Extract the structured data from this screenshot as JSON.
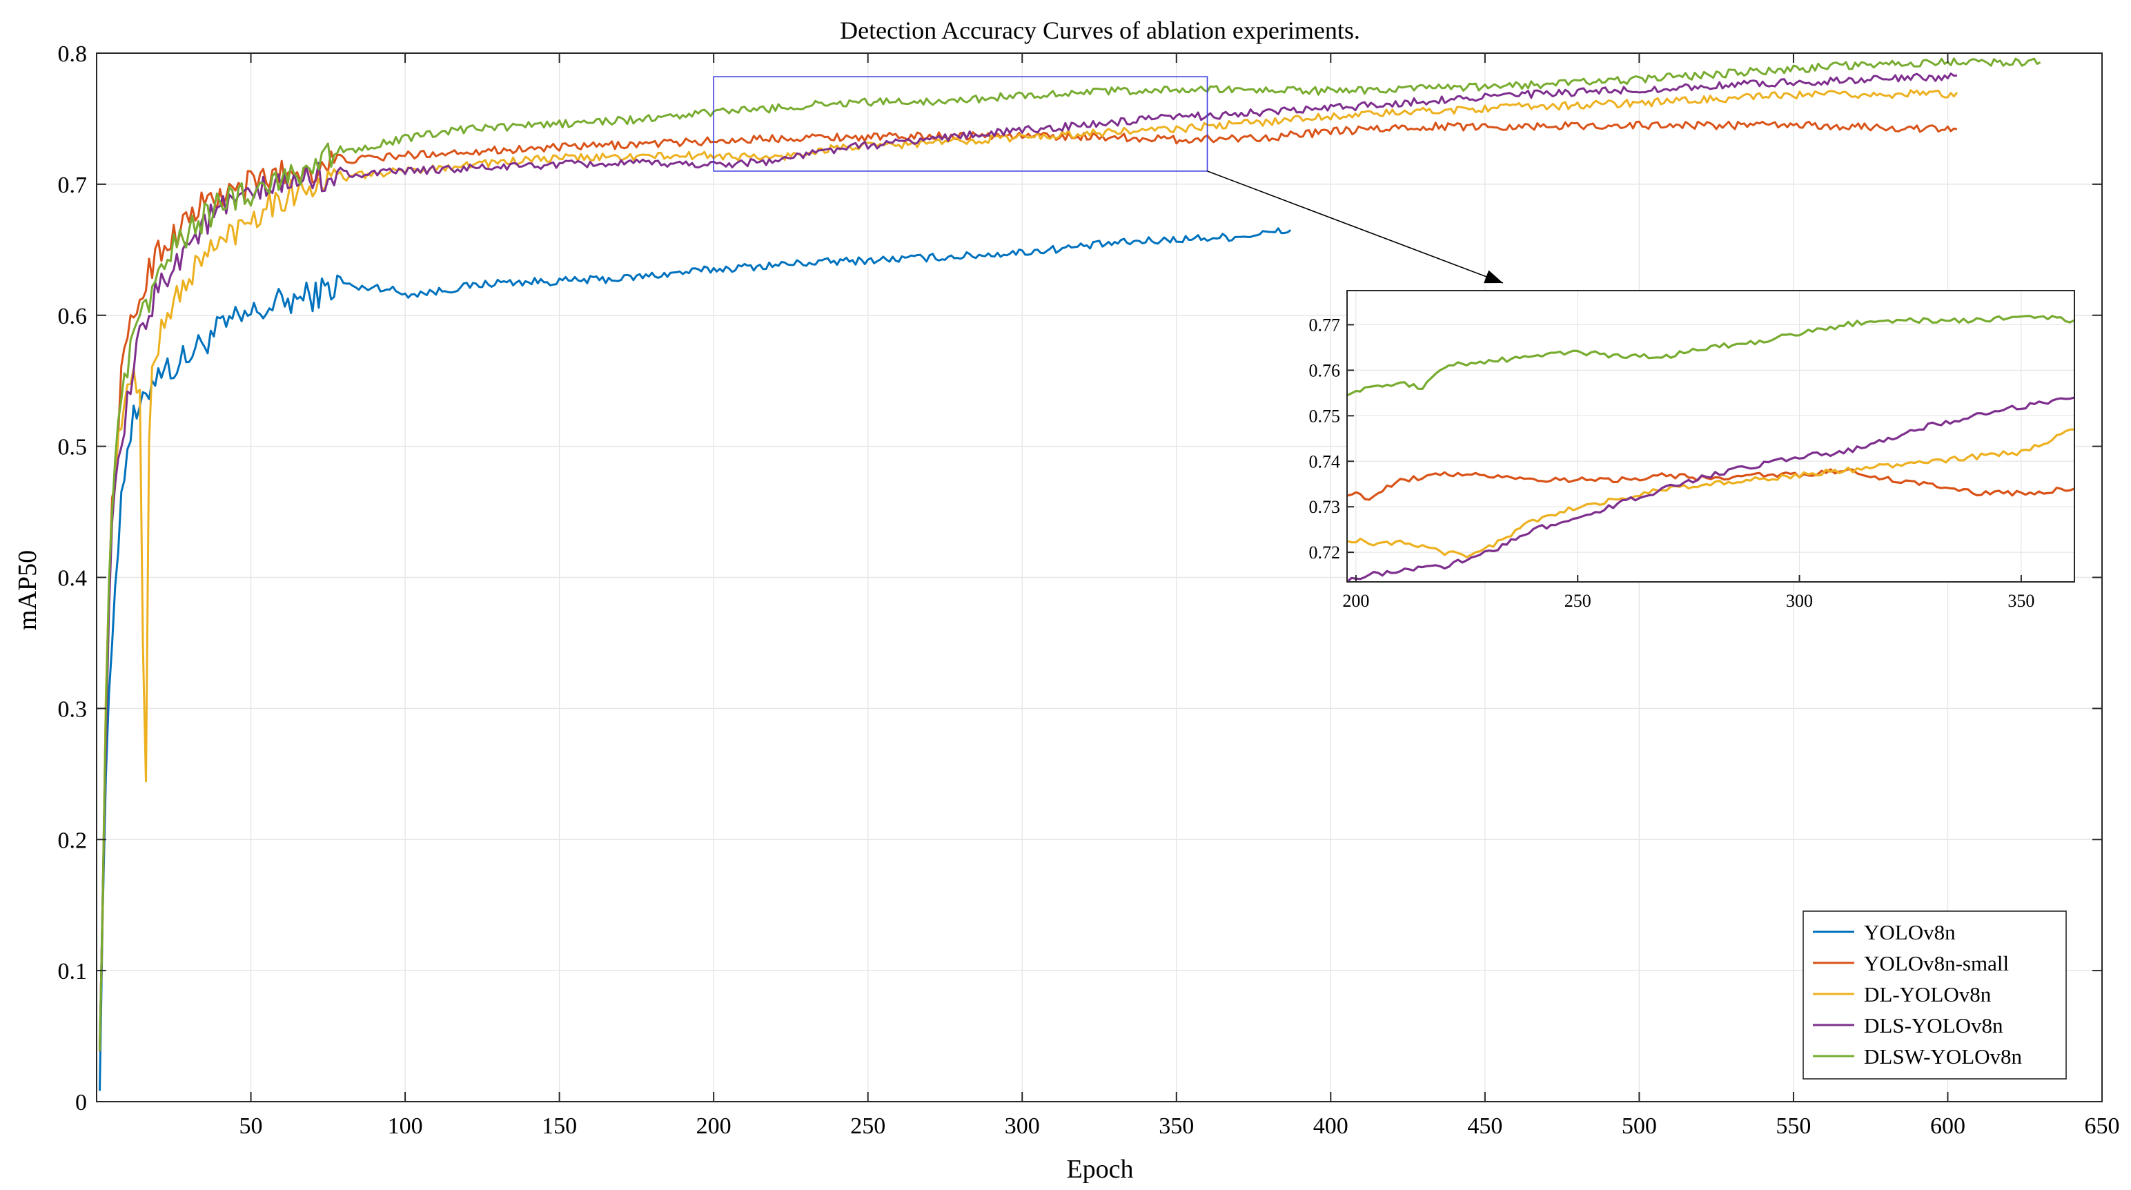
{
  "chart_data": {
    "type": "line",
    "title": "Detection Accuracy Curves of ablation experiments.",
    "xlabel": "Epoch",
    "ylabel": "mAP50",
    "xlim": [
      0,
      650
    ],
    "ylim": [
      0,
      0.8
    ],
    "xticks": [
      50,
      100,
      150,
      200,
      250,
      300,
      350,
      400,
      450,
      500,
      550,
      600,
      650
    ],
    "yticks": [
      0,
      0.1,
      0.2,
      0.3,
      0.4,
      0.5,
      0.6,
      0.7,
      0.8
    ],
    "xtick_labels": [
      "50",
      "100",
      "150",
      "200",
      "250",
      "300",
      "350",
      "400",
      "450",
      "500",
      "550",
      "600",
      "650"
    ],
    "ytick_labels": [
      "0",
      "0.1",
      "0.2",
      "0.3",
      "0.4",
      "0.5",
      "0.6",
      "0.7",
      "0.8"
    ],
    "grid": true,
    "legend_position": "bottom-right",
    "series": [
      {
        "name": "YOLOv8n",
        "color": "#0072BD",
        "x": [
          1,
          2,
          3,
          4,
          5,
          6,
          7,
          8,
          10,
          12,
          15,
          18,
          20,
          25,
          30,
          35,
          40,
          45,
          50,
          55,
          60,
          65,
          70,
          75,
          80,
          85,
          90,
          95,
          100,
          110,
          120,
          130,
          150,
          170,
          200,
          230,
          250,
          280,
          300,
          330,
          350,
          370,
          387
        ],
        "y": [
          0.02,
          0.15,
          0.25,
          0.3,
          0.35,
          0.4,
          0.43,
          0.46,
          0.5,
          0.52,
          0.53,
          0.55,
          0.56,
          0.56,
          0.57,
          0.58,
          0.59,
          0.595,
          0.6,
          0.605,
          0.61,
          0.612,
          0.615,
          0.62,
          0.625,
          0.62,
          0.622,
          0.62,
          0.616,
          0.618,
          0.622,
          0.625,
          0.626,
          0.628,
          0.635,
          0.64,
          0.642,
          0.645,
          0.648,
          0.655,
          0.658,
          0.66,
          0.665
        ]
      },
      {
        "name": "YOLOv8n-small",
        "color": "#D95319",
        "x": [
          1,
          2,
          3,
          4,
          5,
          6,
          7,
          8,
          10,
          12,
          15,
          18,
          20,
          25,
          30,
          35,
          40,
          45,
          50,
          55,
          60,
          65,
          70,
          75,
          80,
          90,
          100,
          120,
          150,
          170,
          200,
          230,
          250,
          280,
          300,
          330,
          350,
          380,
          400,
          430,
          450,
          500,
          550,
          600,
          603
        ],
        "y": [
          0.05,
          0.15,
          0.3,
          0.4,
          0.45,
          0.48,
          0.52,
          0.55,
          0.58,
          0.6,
          0.62,
          0.64,
          0.65,
          0.66,
          0.675,
          0.685,
          0.69,
          0.695,
          0.7,
          0.705,
          0.708,
          0.71,
          0.712,
          0.715,
          0.718,
          0.72,
          0.722,
          0.725,
          0.728,
          0.73,
          0.733,
          0.736,
          0.736,
          0.737,
          0.737,
          0.736,
          0.734,
          0.736,
          0.74,
          0.744,
          0.744,
          0.745,
          0.745,
          0.742,
          0.742
        ]
      },
      {
        "name": "DL-YOLOv8n",
        "color": "#EDB120",
        "x": [
          1,
          2,
          3,
          4,
          5,
          6,
          7,
          8,
          10,
          12,
          14,
          15,
          16,
          17,
          18,
          20,
          25,
          30,
          35,
          40,
          45,
          50,
          55,
          60,
          65,
          70,
          75,
          80,
          90,
          100,
          120,
          150,
          200,
          220,
          240,
          260,
          280,
          300,
          330,
          350,
          380,
          400,
          450,
          500,
          550,
          600,
          603
        ],
        "y": [
          0.05,
          0.15,
          0.3,
          0.4,
          0.45,
          0.48,
          0.5,
          0.52,
          0.54,
          0.55,
          0.55,
          0.35,
          0.24,
          0.5,
          0.56,
          0.58,
          0.61,
          0.63,
          0.645,
          0.655,
          0.665,
          0.675,
          0.685,
          0.69,
          0.695,
          0.7,
          0.702,
          0.705,
          0.708,
          0.71,
          0.715,
          0.72,
          0.722,
          0.72,
          0.728,
          0.73,
          0.733,
          0.736,
          0.74,
          0.742,
          0.748,
          0.752,
          0.758,
          0.762,
          0.768,
          0.769,
          0.77
        ]
      },
      {
        "name": "DLS-YOLOv8n",
        "color": "#7E2F8E",
        "x": [
          1,
          2,
          3,
          4,
          5,
          6,
          7,
          8,
          10,
          12,
          15,
          18,
          20,
          25,
          30,
          35,
          40,
          45,
          50,
          55,
          60,
          65,
          70,
          75,
          80,
          90,
          100,
          120,
          150,
          180,
          200,
          220,
          240,
          260,
          280,
          300,
          330,
          350,
          380,
          400,
          450,
          500,
          550,
          600,
          603
        ],
        "y": [
          0.05,
          0.15,
          0.28,
          0.38,
          0.43,
          0.46,
          0.48,
          0.5,
          0.53,
          0.56,
          0.59,
          0.61,
          0.62,
          0.64,
          0.655,
          0.67,
          0.68,
          0.685,
          0.69,
          0.695,
          0.7,
          0.702,
          0.705,
          0.706,
          0.708,
          0.708,
          0.71,
          0.712,
          0.715,
          0.716,
          0.715,
          0.718,
          0.727,
          0.732,
          0.737,
          0.741,
          0.747,
          0.751,
          0.755,
          0.758,
          0.767,
          0.772,
          0.778,
          0.782,
          0.783
        ]
      },
      {
        "name": "DLSW-YOLOv8n",
        "color": "#77AC30",
        "x": [
          1,
          2,
          3,
          4,
          5,
          6,
          7,
          8,
          10,
          12,
          15,
          18,
          20,
          25,
          30,
          35,
          40,
          45,
          50,
          55,
          60,
          65,
          70,
          75,
          80,
          90,
          100,
          120,
          150,
          180,
          200,
          220,
          240,
          260,
          280,
          300,
          330,
          350,
          380,
          400,
          450,
          500,
          550,
          580,
          600,
          630
        ],
        "y": [
          0.05,
          0.16,
          0.3,
          0.4,
          0.45,
          0.48,
          0.51,
          0.53,
          0.56,
          0.58,
          0.6,
          0.62,
          0.63,
          0.65,
          0.665,
          0.675,
          0.685,
          0.69,
          0.695,
          0.7,
          0.705,
          0.71,
          0.715,
          0.72,
          0.725,
          0.73,
          0.735,
          0.742,
          0.746,
          0.75,
          0.755,
          0.758,
          0.762,
          0.763,
          0.764,
          0.768,
          0.771,
          0.772,
          0.772,
          0.771,
          0.774,
          0.78,
          0.788,
          0.792,
          0.793,
          0.793
        ]
      }
    ],
    "inset": {
      "xlim": [
        198,
        362
      ],
      "ylim": [
        0.7135,
        0.7775
      ],
      "xticks": [
        200,
        250,
        300,
        350
      ],
      "xtick_labels": [
        "200",
        "250",
        "300",
        "350"
      ],
      "yticks": [
        0.72,
        0.73,
        0.74,
        0.75,
        0.76,
        0.77
      ],
      "ytick_labels": [
        "0.72",
        "0.73",
        "0.74",
        "0.75",
        "0.76",
        "0.77"
      ],
      "zoom_box": {
        "x0": 200,
        "x1": 360,
        "y0": 0.71,
        "y1": 0.782
      },
      "series": [
        {
          "name": "YOLOv8n-small",
          "color": "#D95319",
          "x": [
            198,
            203,
            210,
            220,
            230,
            240,
            250,
            260,
            270,
            280,
            290,
            300,
            310,
            320,
            330,
            340,
            350,
            362
          ],
          "y": [
            0.733,
            0.732,
            0.736,
            0.737,
            0.737,
            0.736,
            0.736,
            0.736,
            0.737,
            0.736,
            0.737,
            0.737,
            0.738,
            0.736,
            0.735,
            0.733,
            0.733,
            0.734
          ]
        },
        {
          "name": "DL-YOLOv8n",
          "color": "#EDB120",
          "x": [
            198,
            203,
            210,
            220,
            225,
            230,
            240,
            250,
            260,
            270,
            280,
            290,
            300,
            310,
            320,
            330,
            340,
            350,
            355,
            362
          ],
          "y": [
            0.723,
            0.722,
            0.722,
            0.72,
            0.719,
            0.721,
            0.727,
            0.73,
            0.732,
            0.734,
            0.735,
            0.736,
            0.737,
            0.738,
            0.739,
            0.74,
            0.741,
            0.742,
            0.744,
            0.747
          ]
        },
        {
          "name": "DLS-YOLOv8n",
          "color": "#7E2F8E",
          "x": [
            198,
            203,
            210,
            220,
            230,
            240,
            250,
            260,
            270,
            280,
            290,
            300,
            310,
            320,
            330,
            340,
            350,
            362
          ],
          "y": [
            0.714,
            0.715,
            0.716,
            0.717,
            0.72,
            0.725,
            0.727,
            0.731,
            0.734,
            0.737,
            0.739,
            0.741,
            0.742,
            0.745,
            0.748,
            0.75,
            0.752,
            0.754
          ]
        },
        {
          "name": "DLSW-YOLOv8n",
          "color": "#77AC30",
          "x": [
            198,
            203,
            210,
            215,
            220,
            230,
            240,
            250,
            260,
            270,
            280,
            290,
            300,
            310,
            320,
            330,
            340,
            350,
            362
          ],
          "y": [
            0.755,
            0.756,
            0.757,
            0.756,
            0.761,
            0.762,
            0.763,
            0.764,
            0.763,
            0.763,
            0.765,
            0.766,
            0.768,
            0.77,
            0.771,
            0.771,
            0.771,
            0.772,
            0.771
          ]
        }
      ]
    }
  }
}
